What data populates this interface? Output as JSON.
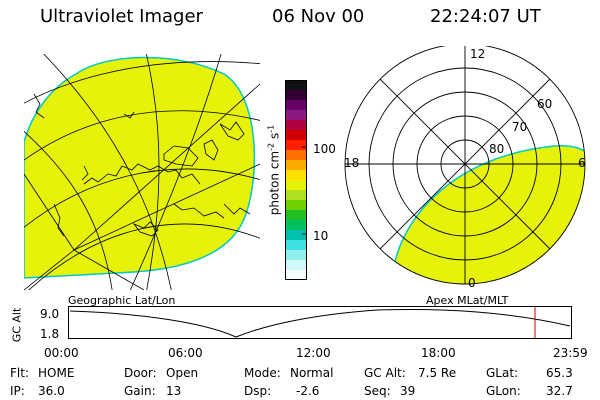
{
  "header": {
    "instrument": "Ultraviolet Imager",
    "date": "06 Nov 00",
    "time": "22:24:07 UT"
  },
  "colors": {
    "emission": "#e6f20a",
    "emission_edge": "#00c8c8"
  },
  "colorbar": {
    "unit_label": "photon cm",
    "unit_sup1": "-2",
    "unit_mid": "s",
    "unit_sup2": "-1",
    "ticks": [
      "100",
      "10"
    ],
    "palette": [
      "#111111",
      "#330033",
      "#660066",
      "#8a1a80",
      "#b00040",
      "#d00000",
      "#ff2000",
      "#ff7000",
      "#ffaa00",
      "#ffe000",
      "#e6f20a",
      "#b0e020",
      "#70d000",
      "#20c020",
      "#00c060",
      "#00c0b0",
      "#40e0e0",
      "#90f0f0",
      "#d0f8f8",
      "#f4ffff"
    ]
  },
  "polar": {
    "mlt_labels": {
      "top": "12",
      "left": "18",
      "right": "6",
      "bottom": "0"
    },
    "lat_labels": [
      "60",
      "70",
      "80"
    ]
  },
  "captions": {
    "left_map": "Geographic Lat/Lon",
    "right_map": "Apex MLat/MLT"
  },
  "timeline": {
    "axis_label": "GC Alt",
    "y_ticks": [
      "9.0",
      "1.8"
    ],
    "x_ticks": [
      "00:00",
      "06:00",
      "12:00",
      "18:00",
      "23:59"
    ],
    "marker_color": "#cc0000"
  },
  "info": {
    "flt_label": "Flt:",
    "flt_value": "HOME",
    "ip_label": "IP:",
    "ip_value": "36.0",
    "door_label": "Door:",
    "door_value": "Open",
    "gain_label": "Gain:",
    "gain_value": "13",
    "mode_label": "Mode:",
    "mode_value": "Normal",
    "dsp_label": "Dsp:",
    "dsp_value": "-2.6",
    "gcalt_label": "GC Alt:",
    "gcalt_value": "7.5 Re",
    "seq_label": "Seq:",
    "seq_value": "39",
    "glat_label": "GLat:",
    "glat_value": "65.3",
    "glon_label": "GLon:",
    "glon_value": "32.7"
  }
}
